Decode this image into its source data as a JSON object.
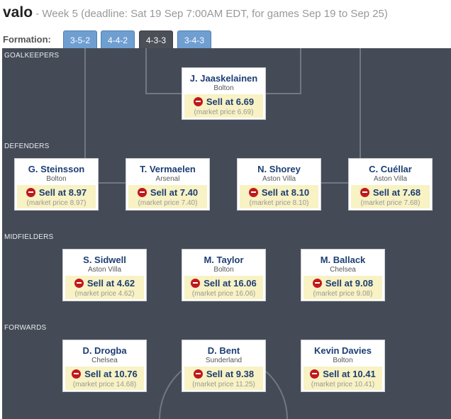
{
  "header": {
    "team_name": "valo",
    "subtitle": " - Week 5 (deadline: Sat 19 Sep 7:00AM EDT, for games Sep 19 to Sep 25)"
  },
  "formation": {
    "label": "Formation:",
    "tabs": [
      {
        "label": "3-5-2",
        "active": false
      },
      {
        "label": "4-4-2",
        "active": false
      },
      {
        "label": "4-3-3",
        "active": true
      },
      {
        "label": "3-4-3",
        "active": false
      }
    ]
  },
  "sections": {
    "goalkeepers": "GOALKEEPERS",
    "defenders": "DEFENDERS",
    "midfielders": "MIDFIELDERS",
    "forwards": "FORWARDS"
  },
  "goalkeepers": [
    {
      "name": "J. Jaaskelainen",
      "team": "Bolton",
      "sell": "Sell at 6.69",
      "market": "(market price 6.69)"
    }
  ],
  "defenders": [
    {
      "name": "G. Steinsson",
      "team": "Bolton",
      "sell": "Sell at 8.97",
      "market": "(market price 8.97)"
    },
    {
      "name": "T. Vermaelen",
      "team": "Arsenal",
      "sell": "Sell at 7.40",
      "market": "(market price 7.40)"
    },
    {
      "name": "N. Shorey",
      "team": "Aston Villa",
      "sell": "Sell at 8.10",
      "market": "(market price 8.10)"
    },
    {
      "name": "C. Cuéllar",
      "team": "Aston Villa",
      "sell": "Sell at 7.68",
      "market": "(market price 7.68)"
    }
  ],
  "midfielders": [
    {
      "name": "S. Sidwell",
      "team": "Aston Villa",
      "sell": "Sell at 4.62",
      "market": "(market price 4.62)"
    },
    {
      "name": "M. Taylor",
      "team": "Bolton",
      "sell": "Sell at 16.06",
      "market": "(market price 16.06)"
    },
    {
      "name": "M. Ballack",
      "team": "Chelsea",
      "sell": "Sell at 9.08",
      "market": "(market price 9.08)"
    }
  ],
  "forwards": [
    {
      "name": "D. Drogba",
      "team": "Chelsea",
      "sell": "Sell at 10.76",
      "market": "(market price 14.68)"
    },
    {
      "name": "D. Bent",
      "team": "Sunderland",
      "sell": "Sell at 9.38",
      "market": "(market price 11.25)"
    },
    {
      "name": "Kevin Davies",
      "team": "Bolton",
      "sell": "Sell at 10.41",
      "market": "(market price 10.41)"
    }
  ]
}
